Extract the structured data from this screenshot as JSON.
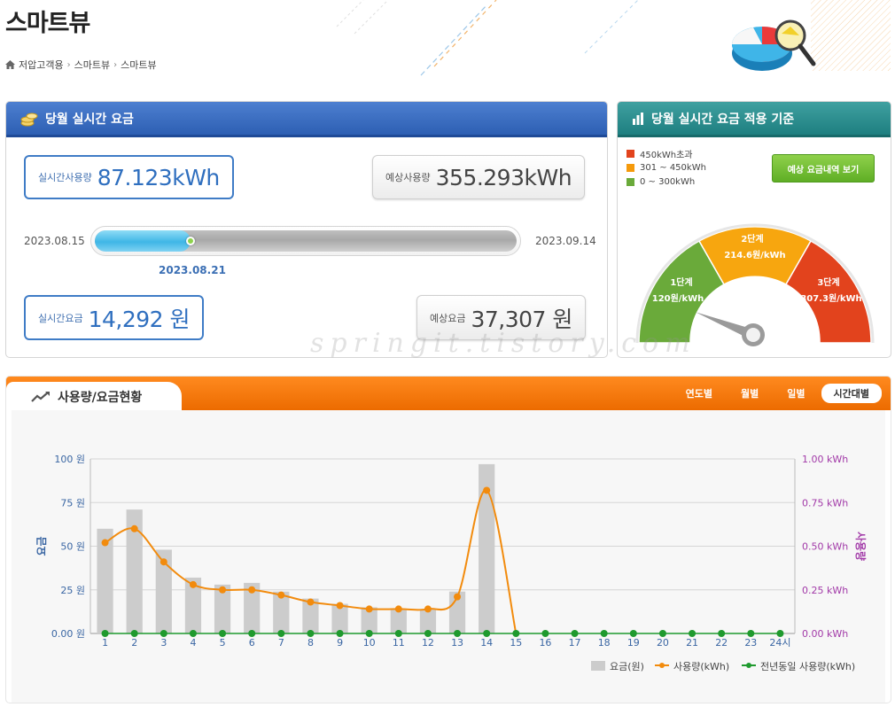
{
  "page": {
    "title": "스마트뷰",
    "breadcrumb": [
      "저압고객용",
      "스마트뷰",
      "스마트뷰"
    ]
  },
  "realtime": {
    "header": "당월 실시간 요금",
    "usage_label": "실시간사용량",
    "usage_value": "87.123kWh",
    "expected_usage_label": "예상사용량",
    "expected_usage_value": "355.293kWh",
    "start_date": "2023.08.15",
    "end_date": "2023.09.14",
    "today_date": "2023.08.21",
    "progress_fraction": 0.227,
    "fee_label": "실시간요금",
    "fee_value": "14,292 원",
    "expected_fee_label": "예상요금",
    "expected_fee_value": "37,307 원"
  },
  "standard": {
    "header": "당월 실시간 요금 적용 기준",
    "legend": [
      {
        "label": "450kWh초과",
        "color": "#e2431d"
      },
      {
        "label": "301 ~ 450kWh",
        "color": "#f59a0c"
      },
      {
        "label": "0 ~ 300kWh",
        "color": "#6aaa3a"
      }
    ],
    "button_label": "예상 요금내역 보기",
    "gauge": {
      "tiers": [
        {
          "name": "1단계",
          "rate": "120원/kWh",
          "color": "#6aaa3a"
        },
        {
          "name": "2단계",
          "rate": "214.6원/kWh",
          "color": "#f7a60f"
        },
        {
          "name": "3단계",
          "rate": "307.3원/kWh",
          "color": "#e2431d"
        }
      ],
      "needle_fraction": 0.12
    }
  },
  "usage": {
    "tab_title": "사용량/요금현황",
    "periods": [
      "연도별",
      "월별",
      "일별",
      "시간대별"
    ],
    "active_period": "시간대별",
    "watermark": "springit.tistory.com"
  },
  "chart_data": {
    "type": "bar",
    "categories": [
      "1",
      "2",
      "3",
      "4",
      "5",
      "6",
      "7",
      "8",
      "9",
      "10",
      "11",
      "12",
      "13",
      "14",
      "15",
      "16",
      "17",
      "18",
      "19",
      "20",
      "21",
      "22",
      "23",
      "24시"
    ],
    "y_left_label": "요금",
    "y_right_label": "사용량",
    "y_left_ticks": [
      "100 원",
      "75 원",
      "50 원",
      "25 원",
      "0.00 원"
    ],
    "y_right_ticks": [
      "1.00 kWh",
      "0.75 kWh",
      "0.50 kWh",
      "0.25 kWh",
      "0.00 kWh"
    ],
    "ylim_left": [
      0,
      100
    ],
    "ylim_right": [
      0,
      1.0
    ],
    "grid": true,
    "legend_position": "bottom-right",
    "series": [
      {
        "name": "요금(원)",
        "kind": "bar",
        "axis": "left",
        "color": "#cccccc",
        "values": [
          60,
          71,
          48,
          32,
          28,
          29,
          24,
          20,
          17,
          15,
          14,
          14,
          24,
          97,
          0,
          0,
          0,
          0,
          0,
          0,
          0,
          0,
          0,
          0
        ]
      },
      {
        "name": "사용량(kWh)",
        "kind": "line",
        "axis": "right",
        "color": "#f28b0d",
        "values": [
          0.52,
          0.6,
          0.41,
          0.28,
          0.25,
          0.25,
          0.22,
          0.18,
          0.16,
          0.14,
          0.14,
          0.14,
          0.21,
          0.82,
          0,
          0,
          0,
          0,
          0,
          0,
          0,
          0,
          0,
          0
        ]
      },
      {
        "name": "전년동일 사용량(kWh)",
        "kind": "line",
        "axis": "right",
        "color": "#1f9a2e",
        "values": [
          0,
          0,
          0,
          0,
          0,
          0,
          0,
          0,
          0,
          0,
          0,
          0,
          0,
          0,
          0,
          0,
          0,
          0,
          0,
          0,
          0,
          0,
          0,
          0
        ]
      }
    ]
  }
}
